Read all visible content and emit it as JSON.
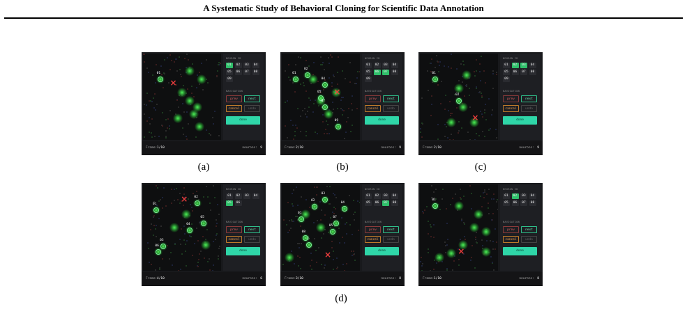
{
  "header": {
    "title": "A Systematic Study of Behavioral Cloning for Scientific Data Annotation"
  },
  "panels": [
    {
      "markers": [
        "01"
      ],
      "neuron_id_label": "NEURON ID",
      "ids": [
        "01",
        "02",
        "03",
        "04",
        "05",
        "06",
        "07",
        "08",
        "09"
      ],
      "selected": [
        "01"
      ],
      "nav_label": "NAVIGATION",
      "buttons": {
        "prev": "prev",
        "next": "next",
        "cancel": "cancel",
        "undo": "undo",
        "done": "done"
      },
      "frame_label": "Frame:",
      "frame": "1/10",
      "neurons_label": "neurons:",
      "neurons": "9",
      "caption": "(a)"
    },
    {
      "markers": [
        "01",
        "02",
        "04",
        "05",
        "07",
        "09"
      ],
      "neuron_id_label": "NEURON ID",
      "ids": [
        "01",
        "02",
        "03",
        "04",
        "05",
        "06",
        "07",
        "08",
        "09"
      ],
      "selected": [
        "06",
        "07"
      ],
      "nav_label": "NAVIGATION",
      "buttons": {
        "prev": "prev",
        "next": "next",
        "cancel": "cancel",
        "undo": "undo",
        "done": "done"
      },
      "frame_label": "Frame:",
      "frame": "2/10",
      "neurons_label": "neurons:",
      "neurons": "9",
      "caption": "(b)"
    },
    {
      "markers": [
        "01",
        "02"
      ],
      "neuron_id_label": "NEURON ID",
      "ids": [
        "01",
        "02",
        "03",
        "04",
        "05",
        "06",
        "07",
        "08",
        "09"
      ],
      "selected": [
        "02",
        "03"
      ],
      "nav_label": "NAVIGATION",
      "buttons": {
        "prev": "prev",
        "next": "next",
        "cancel": "cancel",
        "undo": "undo",
        "done": "done"
      },
      "frame_label": "Frame:",
      "frame": "2/10",
      "neurons_label": "neurons:",
      "neurons": "9",
      "caption": "(c)"
    },
    {
      "markers": [
        "01",
        "02",
        "03",
        "04",
        "05",
        "06"
      ],
      "neuron_id_label": "NEURON ID",
      "ids": [
        "01",
        "02",
        "03",
        "04",
        "05",
        "06"
      ],
      "selected": [
        "05"
      ],
      "nav_label": "NAVIGATION",
      "buttons": {
        "prev": "prev",
        "next": "next",
        "cancel": "cancel",
        "undo": "undo",
        "done": "done"
      },
      "frame_label": "Frame:",
      "frame": "4/10",
      "neurons_label": "neurons:",
      "neurons": "6"
    },
    {
      "markers": [
        "01",
        "02",
        "03",
        "04",
        "05",
        "06",
        "07",
        "08"
      ],
      "neuron_id_label": "NEURON ID",
      "ids": [
        "01",
        "02",
        "03",
        "04",
        "05",
        "06",
        "07",
        "08"
      ],
      "selected": [
        "07"
      ],
      "nav_label": "NAVIGATION",
      "buttons": {
        "prev": "prev",
        "next": "next",
        "cancel": "cancel",
        "undo": "undo",
        "done": "done"
      },
      "frame_label": "Frame:",
      "frame": "3/10",
      "neurons_label": "neurons:",
      "neurons": "8"
    },
    {
      "markers": [
        "01"
      ],
      "neuron_id_label": "NEURON ID",
      "ids": [
        "01",
        "02",
        "03",
        "04",
        "05",
        "06",
        "07",
        "08"
      ],
      "selected": [
        "02"
      ],
      "nav_label": "NAVIGATION",
      "buttons": {
        "prev": "prev",
        "next": "next",
        "cancel": "cancel",
        "undo": "undo",
        "done": "done"
      },
      "frame_label": "Frame:",
      "frame": "1/10",
      "neurons_label": "neurons:",
      "neurons": "8"
    }
  ],
  "figure_caption": "(d)"
}
